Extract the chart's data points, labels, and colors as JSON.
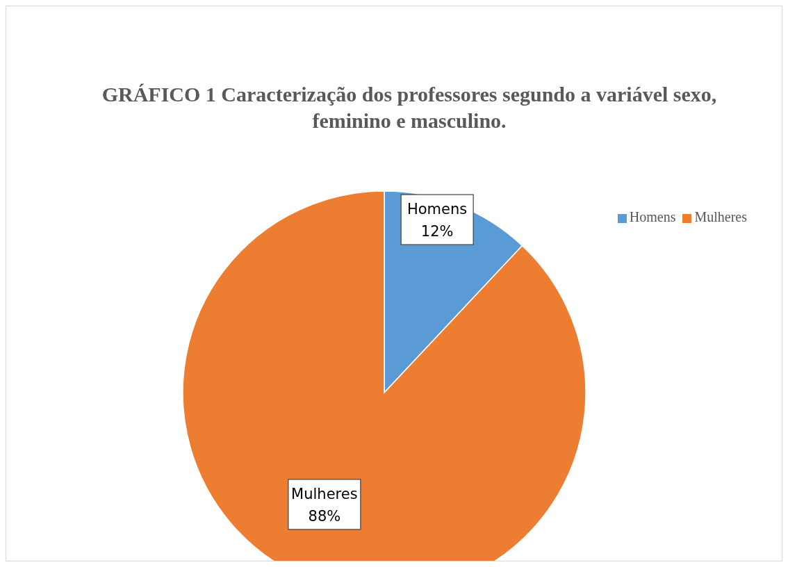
{
  "chart_data": {
    "type": "pie",
    "title": "GRÁFICO 1 Caracterização dos professores segundo a variável sexo, feminino e masculino.",
    "categories": [
      "Homens",
      "Mulheres"
    ],
    "values": [
      12,
      88
    ],
    "value_labels": [
      "12%",
      "88%"
    ],
    "colors": [
      "#5b9bd5",
      "#ed7d31"
    ],
    "legend": "top right"
  }
}
